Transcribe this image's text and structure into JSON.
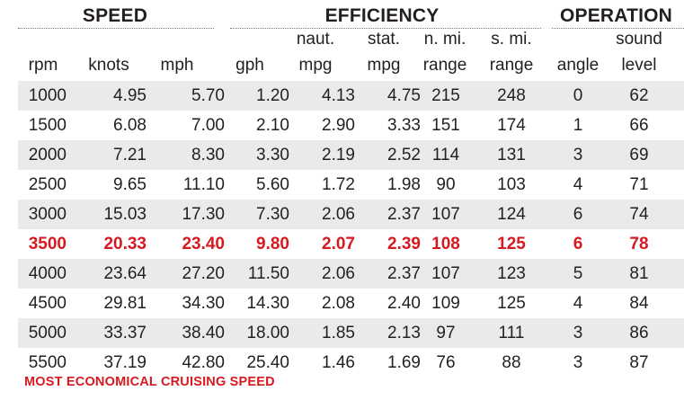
{
  "sections": {
    "speed": "SPEED",
    "efficiency": "EFFICIENCY",
    "operation": "OPERATION"
  },
  "headers": {
    "rpm": [
      "",
      "rpm"
    ],
    "knots": [
      "",
      "knots"
    ],
    "mph": [
      "",
      "mph"
    ],
    "gph": [
      "",
      "gph"
    ],
    "naut_mpg": [
      "naut.",
      "mpg"
    ],
    "stat_mpg": [
      "stat.",
      "mpg"
    ],
    "nmi_range": [
      "n. mi.",
      "range"
    ],
    "smi_range": [
      "s. mi.",
      "range"
    ],
    "angle": [
      "",
      "angle"
    ],
    "sound": [
      "sound",
      "level"
    ]
  },
  "rows": [
    [
      "1000",
      "4.95",
      "5.70",
      "1.20",
      "4.13",
      "4.75",
      "215",
      "248",
      "0",
      "62"
    ],
    [
      "1500",
      "6.08",
      "7.00",
      "2.10",
      "2.90",
      "3.33",
      "151",
      "174",
      "1",
      "66"
    ],
    [
      "2000",
      "7.21",
      "8.30",
      "3.30",
      "2.19",
      "2.52",
      "114",
      "131",
      "3",
      "69"
    ],
    [
      "2500",
      "9.65",
      "11.10",
      "5.60",
      "1.72",
      "1.98",
      "90",
      "103",
      "4",
      "71"
    ],
    [
      "3000",
      "15.03",
      "17.30",
      "7.30",
      "2.06",
      "2.37",
      "107",
      "124",
      "6",
      "74"
    ],
    [
      "3500",
      "20.33",
      "23.40",
      "9.80",
      "2.07",
      "2.39",
      "108",
      "125",
      "6",
      "78"
    ],
    [
      "4000",
      "23.64",
      "27.20",
      "11.50",
      "2.06",
      "2.37",
      "107",
      "123",
      "5",
      "81"
    ],
    [
      "4500",
      "29.81",
      "34.30",
      "14.30",
      "2.08",
      "2.40",
      "109",
      "125",
      "4",
      "84"
    ],
    [
      "5000",
      "33.37",
      "38.40",
      "18.00",
      "1.85",
      "2.13",
      "97",
      "111",
      "3",
      "86"
    ],
    [
      "5500",
      "37.19",
      "42.80",
      "25.40",
      "1.46",
      "1.69",
      "76",
      "88",
      "3",
      "87"
    ]
  ],
  "highlight_row": 5,
  "highlight_color": "#d71920",
  "stripe_color": "#eaeaea",
  "footnote": "MOST ECONOMICAL CRUISING SPEED"
}
